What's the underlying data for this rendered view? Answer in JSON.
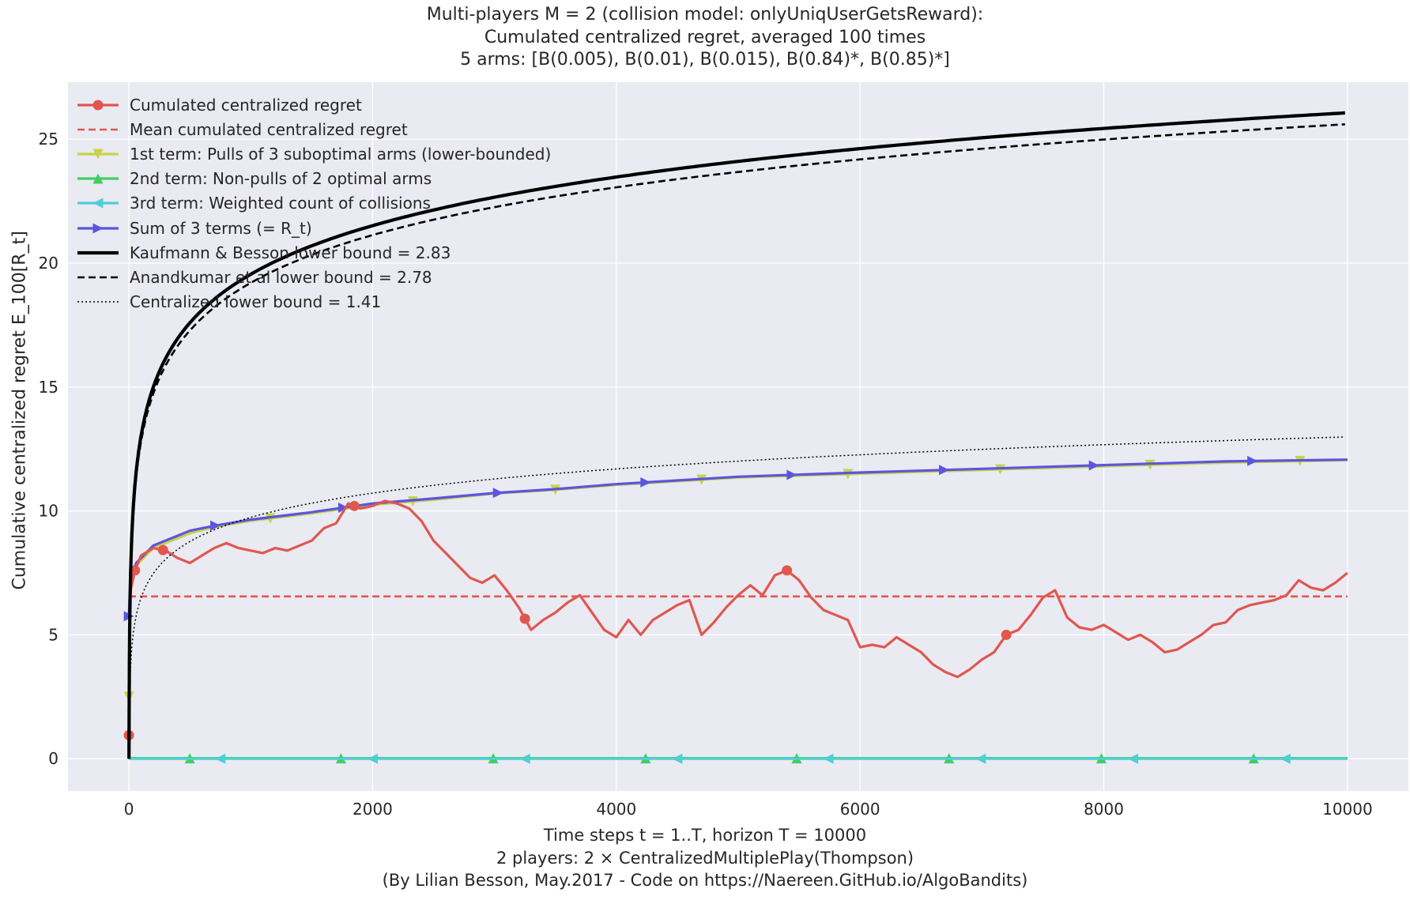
{
  "figure": {
    "title_lines": [
      "Multi-players M = 2 (collision model: onlyUniqUserGetsReward):",
      "Cumulated centralized regret, averaged 100 times",
      "5 arms: [B(0.005), B(0.01), B(0.015), B(0.84)*, B(0.85)*]"
    ],
    "xlabel_lines": [
      "Time steps t = 1..T, horizon T = 10000",
      "2 players: 2 × CentralizedMultiplePlay(Thompson)",
      "(By Lilian Besson, May.2017 - Code on https://Naereen.GitHub.io/AlgoBandits)"
    ],
    "ylabel": "Cumulative centralized regret E_100[R_t]"
  },
  "colors": {
    "background": "#EAEAF2",
    "grid": "#FFFFFF",
    "red": "#E0574F",
    "yellow": "#C8D24A",
    "green": "#3FCF61",
    "cyan": "#4FCFD2",
    "purple": "#5B55E0",
    "black": "#000000"
  },
  "chart_data": {
    "type": "line",
    "xlim": [
      -500,
      10500
    ],
    "ylim": [
      -1.3,
      27.3
    ],
    "xticks": [
      0,
      2000,
      4000,
      6000,
      8000,
      10000
    ],
    "yticks": [
      0,
      5,
      10,
      15,
      20,
      25
    ],
    "grid": true,
    "legend_position": "upper-left",
    "series": [
      {
        "name": "Cumulated centralized regret",
        "color": "#E0574F",
        "style": "solid",
        "marker": "circle",
        "x": [
          0,
          10,
          50,
          100,
          200,
          300,
          400,
          500,
          600,
          700,
          800,
          900,
          1000,
          1100,
          1200,
          1300,
          1400,
          1500,
          1600,
          1700,
          1800,
          1900,
          2000,
          2100,
          2200,
          2300,
          2400,
          2500,
          2600,
          2700,
          2800,
          2900,
          3000,
          3100,
          3200,
          3300,
          3400,
          3500,
          3600,
          3700,
          3800,
          3900,
          4000,
          4100,
          4200,
          4300,
          4400,
          4500,
          4600,
          4700,
          4800,
          4900,
          5000,
          5100,
          5200,
          5300,
          5400,
          5500,
          5600,
          5700,
          5800,
          5900,
          6000,
          6100,
          6200,
          6300,
          6400,
          6500,
          6600,
          6700,
          6800,
          6900,
          7000,
          7100,
          7200,
          7300,
          7400,
          7500,
          7600,
          7700,
          7800,
          7900,
          8000,
          8100,
          8200,
          8300,
          8400,
          8500,
          8600,
          8700,
          8800,
          8900,
          9000,
          9100,
          9200,
          9300,
          9400,
          9500,
          9600,
          9700,
          9800,
          9900,
          10000
        ],
        "y": [
          0.95,
          6.7,
          7.6,
          8.2,
          8.5,
          8.4,
          8.1,
          7.9,
          8.2,
          8.5,
          8.7,
          8.5,
          8.4,
          8.3,
          8.5,
          8.4,
          8.6,
          8.8,
          9.3,
          9.5,
          10.3,
          10.1,
          10.2,
          10.4,
          10.3,
          10.1,
          9.6,
          8.8,
          8.3,
          7.8,
          7.3,
          7.1,
          7.4,
          6.8,
          6.1,
          5.2,
          5.6,
          5.9,
          6.3,
          6.6,
          5.9,
          5.2,
          4.9,
          5.6,
          5.0,
          5.6,
          5.9,
          6.2,
          6.4,
          5.0,
          5.5,
          6.1,
          6.6,
          7.0,
          6.6,
          7.4,
          7.6,
          7.2,
          6.5,
          6.0,
          5.8,
          5.6,
          4.5,
          4.6,
          4.5,
          4.9,
          4.6,
          4.3,
          3.8,
          3.5,
          3.3,
          3.6,
          4.0,
          4.3,
          5.0,
          5.2,
          5.8,
          6.5,
          6.8,
          5.7,
          5.3,
          5.2,
          5.4,
          5.1,
          4.8,
          5.0,
          4.7,
          4.3,
          4.4,
          4.7,
          5.0,
          5.4,
          5.5,
          6.0,
          6.2,
          6.3,
          6.4,
          6.6,
          7.2,
          6.9,
          6.8,
          7.1,
          7.5
        ],
        "marker_x": [
          0,
          50,
          280,
          1850,
          3250,
          5400,
          7200
        ]
      },
      {
        "name": "Mean cumulated centralized regret",
        "color": "#E0574F",
        "style": "dashed",
        "marker": "none",
        "x": [
          0,
          10000
        ],
        "y": [
          6.55,
          6.55
        ]
      },
      {
        "name": "1st term: Pulls of 3 suboptimal arms (lower-bounded)",
        "color": "#C8D24A",
        "style": "solid",
        "marker": "triangle-down",
        "x": [
          0,
          10,
          30,
          60,
          100,
          200,
          300,
          400,
          500,
          700,
          1000,
          1500,
          2000,
          2500,
          3000,
          3500,
          4000,
          5000,
          6000,
          7000,
          8000,
          9000,
          10000
        ],
        "y": [
          2.5,
          6.9,
          7.3,
          7.8,
          8.0,
          8.5,
          8.7,
          8.9,
          9.1,
          9.35,
          9.6,
          9.9,
          10.25,
          10.45,
          10.7,
          10.85,
          11.05,
          11.35,
          11.5,
          11.65,
          11.8,
          11.95,
          12.05
        ],
        "marker_x": [
          0,
          1160,
          2330,
          3500,
          4700,
          5900,
          7150,
          8380,
          9610
        ]
      },
      {
        "name": "2nd term: Non-pulls of 2 optimal arms",
        "color": "#3FCF61",
        "style": "solid",
        "marker": "triangle-up",
        "x": [
          0,
          10000
        ],
        "y": [
          0.02,
          0.02
        ],
        "marker_x": [
          500,
          1740,
          2990,
          4240,
          5480,
          6730,
          7980,
          9230
        ]
      },
      {
        "name": "3rd term: Weighted count of collisions",
        "color": "#4FCFD2",
        "style": "solid",
        "marker": "triangle-left",
        "x": [
          0,
          10000
        ],
        "y": [
          0.0,
          0.0
        ],
        "marker_x": [
          750,
          2000,
          3250,
          4500,
          5740,
          6990,
          8240,
          9490
        ]
      },
      {
        "name": "Sum of 3 terms (= R_t)",
        "color": "#5B55E0",
        "style": "solid",
        "marker": "triangle-right",
        "x": [
          0,
          10,
          30,
          60,
          100,
          200,
          300,
          400,
          500,
          700,
          1000,
          1500,
          2000,
          2500,
          3000,
          3500,
          4000,
          5000,
          6000,
          7000,
          8000,
          9000,
          10000
        ],
        "y": [
          5.75,
          7.0,
          7.4,
          7.9,
          8.1,
          8.6,
          8.8,
          9.0,
          9.2,
          9.4,
          9.65,
          9.95,
          10.3,
          10.5,
          10.72,
          10.88,
          11.08,
          11.38,
          11.55,
          11.7,
          11.85,
          12.0,
          12.07
        ],
        "marker_x": [
          0,
          710,
          1760,
          3030,
          4240,
          5440,
          6690,
          7920,
          9220
        ]
      },
      {
        "name": "Kaufmann & Besson lower bound = 2.83",
        "color": "#000000",
        "style": "solid-thick",
        "marker": "none",
        "formula": "2.83*ln(t)"
      },
      {
        "name": "Anandkumar et al lower bound = 2.78",
        "color": "#000000",
        "style": "dashed",
        "marker": "none",
        "formula": "2.78*ln(t)"
      },
      {
        "name": "Centralized lower bound = 1.41",
        "color": "#000000",
        "style": "dotted",
        "marker": "none",
        "formula": "1.41*ln(t)"
      }
    ]
  }
}
